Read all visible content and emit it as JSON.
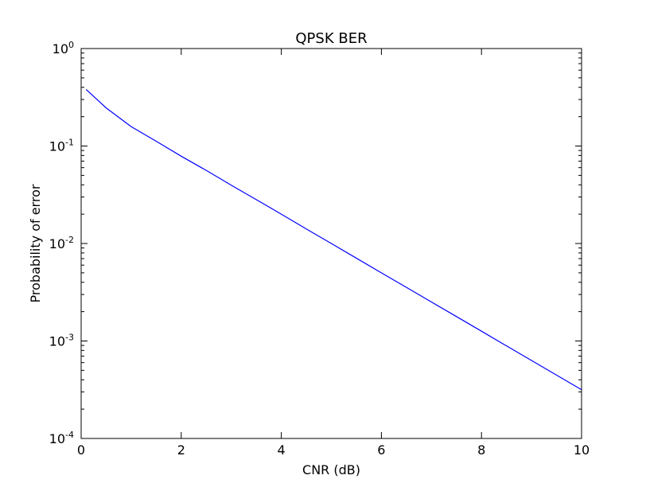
{
  "chart_data": {
    "type": "line",
    "title": "QPSK BER",
    "xlabel": "CNR (dB)",
    "ylabel": "Probability of error",
    "xlim": [
      0,
      10
    ],
    "ylim": [
      0.0001,
      1
    ],
    "yscale": "log",
    "grid": false,
    "x_ticks": [
      {
        "value": 0,
        "label": "0"
      },
      {
        "value": 2,
        "label": "2"
      },
      {
        "value": 4,
        "label": "4"
      },
      {
        "value": 6,
        "label": "6"
      },
      {
        "value": 8,
        "label": "8"
      },
      {
        "value": 10,
        "label": "10"
      }
    ],
    "y_ticks": [
      {
        "value": 1,
        "base": "10",
        "exp": "0"
      },
      {
        "value": 0.1,
        "base": "10",
        "exp": "-1"
      },
      {
        "value": 0.01,
        "base": "10",
        "exp": "-2"
      },
      {
        "value": 0.001,
        "base": "10",
        "exp": "-3"
      },
      {
        "value": 0.0001,
        "base": "10",
        "exp": "-4"
      }
    ],
    "series": [
      {
        "color": "#0000ff",
        "x": [
          0.1,
          0.5,
          1,
          1.5,
          2,
          2.5,
          3,
          3.5,
          4,
          4.5,
          5,
          5.5,
          6,
          6.5,
          7,
          7.5,
          8,
          8.5,
          9,
          9.5,
          10
        ],
        "y": [
          0.38,
          0.246,
          0.158,
          0.112,
          0.0786,
          0.0562,
          0.0396,
          0.0282,
          0.02,
          0.0141,
          0.01,
          0.00707,
          0.005,
          0.00355,
          0.00251,
          0.00178,
          0.00126,
          0.000891,
          0.000631,
          0.000447,
          0.000316
        ]
      }
    ]
  }
}
